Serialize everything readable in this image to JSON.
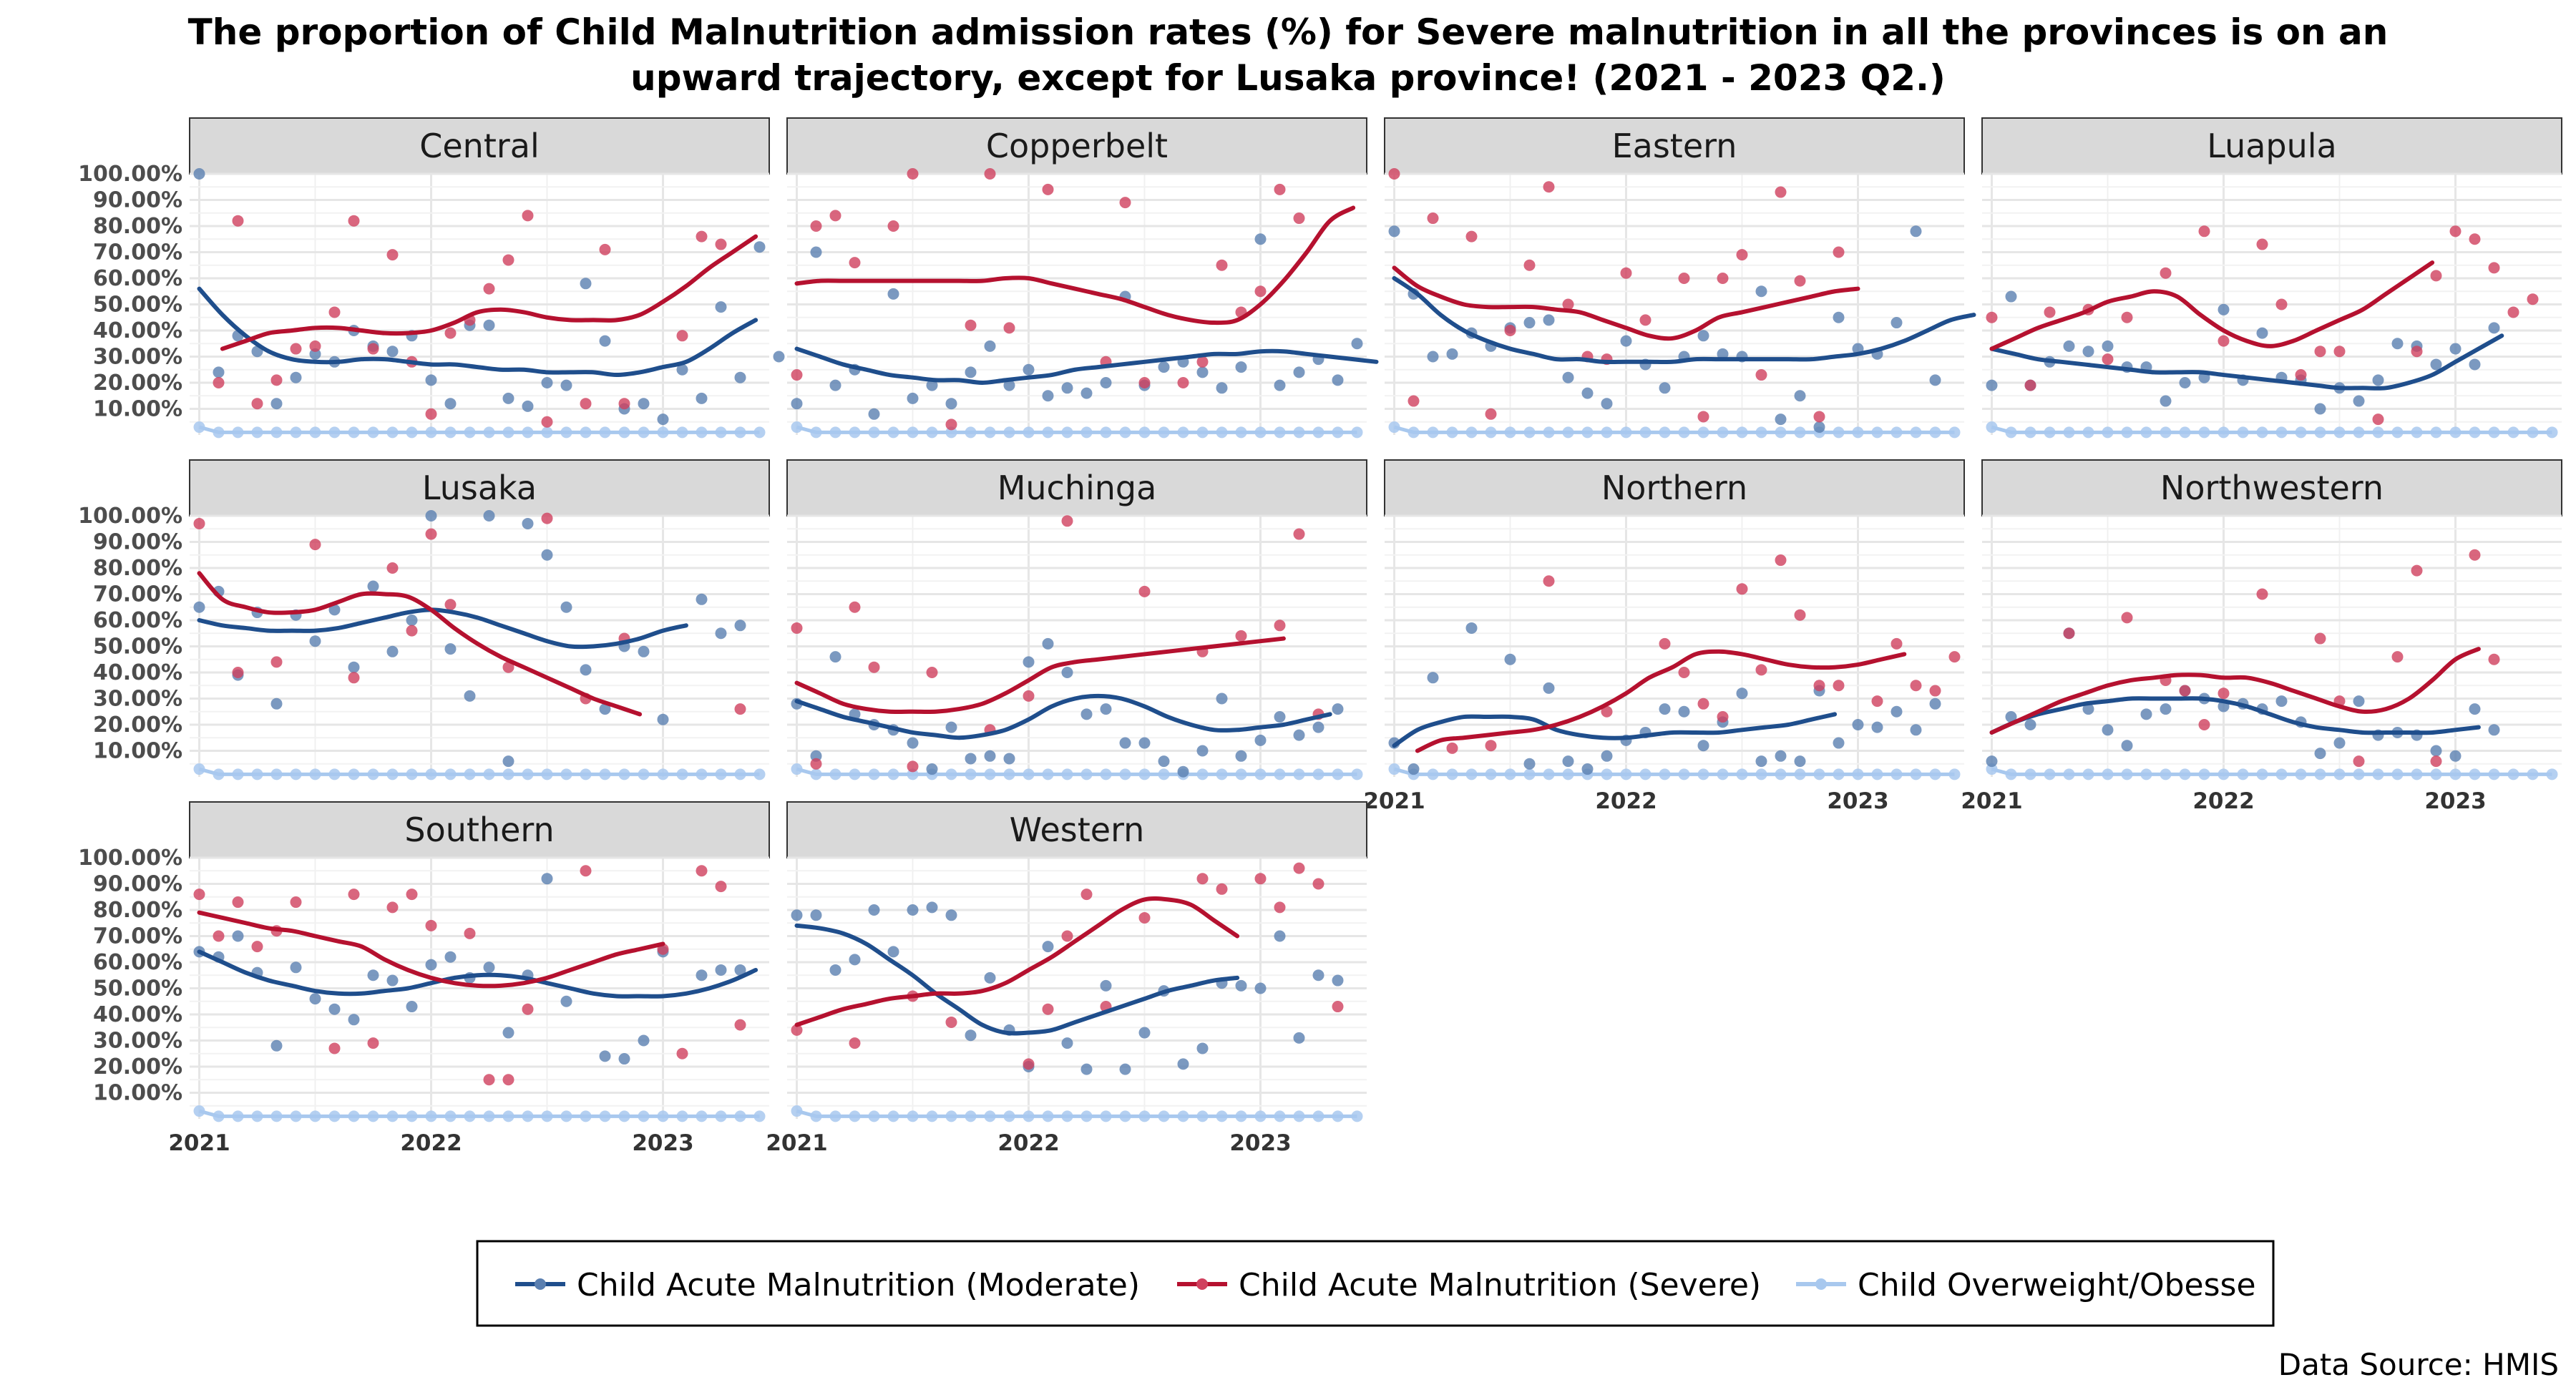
{
  "chart_data": {
    "type": "scatter",
    "title_lines": [
      "The proportion of Child Malnutrition admission rates (%) for Severe malnutrition in all the provinces is on an",
      "upward trajectory, except for Lusaka province! (2021 - 2023 Q2.)"
    ],
    "caption": "Data Source: HMIS",
    "x_ticks": [
      {
        "label": "2021",
        "value": 0
      },
      {
        "label": "2022",
        "value": 12
      },
      {
        "label": "2023",
        "value": 24
      }
    ],
    "x_unit": "months since January 2021",
    "xlim": [
      -0.5,
      29.5
    ],
    "y_ticks": [
      {
        "label": "10.00%",
        "value": 10
      },
      {
        "label": "20.00%",
        "value": 20
      },
      {
        "label": "30.00%",
        "value": 30
      },
      {
        "label": "40.00%",
        "value": 40
      },
      {
        "label": "50.00%",
        "value": 50
      },
      {
        "label": "60.00%",
        "value": 60
      },
      {
        "label": "70.00%",
        "value": 70
      },
      {
        "label": "80.00%",
        "value": 80
      },
      {
        "label": "90.00%",
        "value": 90
      },
      {
        "label": "100.00%",
        "value": 100
      }
    ],
    "ylim": [
      0,
      100
    ],
    "grid": true,
    "legend_position": "bottom",
    "series_meta": [
      {
        "name": "Child Acute Malnutrition (Moderate)",
        "color": "#1f4e8c",
        "point_color": "#5a7fb0"
      },
      {
        "name": "Child Acute Malnutrition (Severe)",
        "color": "#b5112f",
        "point_color": "#d0405e"
      },
      {
        "name": "Child Overweight/Obesse",
        "color": "#a8c8ee",
        "point_color": "#a8c8ee"
      }
    ],
    "panels": [
      {
        "name": "Central",
        "moderate": [
          100,
          24,
          38,
          32,
          12,
          22,
          31,
          28,
          40,
          34,
          32,
          38,
          21,
          12,
          42,
          42,
          14,
          11,
          20,
          19,
          58,
          36,
          10,
          12,
          6,
          25,
          14,
          49,
          22,
          72,
          30
        ],
        "severe": [
          null,
          20,
          82,
          12,
          21,
          33,
          34,
          47,
          82,
          33,
          69,
          28,
          8,
          39,
          44,
          56,
          67,
          84,
          5,
          null,
          12,
          71,
          12,
          null,
          null,
          38,
          76,
          73
        ],
        "moderate_trend": [
          56,
          46,
          38,
          32,
          29,
          28,
          28,
          29,
          29,
          28,
          27,
          27,
          26,
          25,
          25,
          24,
          24,
          24,
          23,
          24,
          26,
          28,
          33,
          39,
          44
        ],
        "severe_trend": [
          null,
          33,
          36,
          39,
          40,
          41,
          41,
          40,
          39,
          39,
          40,
          43,
          47,
          48,
          47,
          45,
          44,
          44,
          44,
          46,
          51,
          57,
          64,
          70,
          76
        ]
      },
      {
        "name": "Copperbelt",
        "moderate": [
          12,
          70,
          19,
          25,
          8,
          54,
          14,
          19,
          12,
          24,
          34,
          19,
          25,
          15,
          18,
          16,
          20,
          53,
          19,
          26,
          28,
          24,
          18,
          26,
          75,
          19,
          24,
          29,
          21,
          35
        ],
        "severe": [
          23,
          80,
          84,
          66,
          null,
          80,
          100,
          null,
          4,
          42,
          100,
          41,
          null,
          94,
          null,
          null,
          28,
          89,
          20,
          null,
          20,
          28,
          65,
          47,
          55,
          94,
          83
        ],
        "moderate_trend": [
          33,
          30,
          27,
          25,
          23,
          22,
          21,
          21,
          20,
          21,
          22,
          23,
          25,
          26,
          27,
          28,
          29,
          30,
          31,
          31,
          32,
          32,
          31,
          30,
          29,
          28
        ],
        "severe_trend": [
          58,
          59,
          59,
          59,
          59,
          59,
          59,
          59,
          59,
          60,
          60,
          58,
          56,
          54,
          52,
          49,
          46,
          44,
          43,
          44,
          50,
          59,
          70,
          82,
          87
        ]
      },
      {
        "name": "Eastern",
        "moderate": [
          78,
          54,
          30,
          31,
          39,
          34,
          41,
          43,
          44,
          22,
          16,
          12,
          36,
          27,
          18,
          30,
          38,
          31,
          30,
          55,
          6,
          15,
          3,
          45,
          33,
          31,
          43,
          78,
          21
        ],
        "severe": [
          100,
          13,
          83,
          null,
          76,
          8,
          40,
          65,
          95,
          50,
          30,
          29,
          62,
          44,
          null,
          60,
          7,
          60,
          69,
          23,
          93,
          59,
          7,
          70
        ],
        "moderate_trend": [
          60,
          54,
          46,
          40,
          36,
          33,
          31,
          29,
          29,
          28,
          28,
          28,
          28,
          29,
          29,
          29,
          29,
          29,
          29,
          30,
          31,
          33,
          36,
          40,
          44,
          46
        ],
        "severe_trend": [
          64,
          57,
          53,
          50,
          49,
          49,
          49,
          48,
          47,
          44,
          41,
          38,
          37,
          40,
          45,
          47,
          49,
          51,
          53,
          55,
          56
        ]
      },
      {
        "name": "Luapula",
        "moderate": [
          19,
          53,
          19,
          28,
          34,
          32,
          34,
          26,
          26,
          13,
          20,
          22,
          48,
          21,
          39,
          22,
          21,
          10,
          18,
          13,
          21,
          35,
          34,
          27,
          33,
          27,
          41
        ],
        "severe": [
          45,
          null,
          19,
          47,
          null,
          48,
          29,
          45,
          null,
          62,
          null,
          78,
          36,
          null,
          73,
          50,
          23,
          32,
          32,
          null,
          6,
          null,
          32,
          61,
          78,
          75,
          64,
          47,
          52
        ],
        "moderate_trend": [
          33,
          31,
          29,
          28,
          27,
          26,
          25,
          24,
          24,
          24,
          23,
          22,
          21,
          20,
          19,
          18,
          18,
          18,
          20,
          23,
          28,
          33,
          38
        ],
        "severe_trend": [
          33,
          37,
          41,
          44,
          47,
          51,
          53,
          55,
          53,
          46,
          40,
          36,
          34,
          36,
          40,
          44,
          48,
          54,
          60,
          66
        ]
      },
      {
        "name": "Lusaka",
        "moderate": [
          65,
          71,
          39,
          63,
          28,
          62,
          52,
          64,
          42,
          73,
          48,
          60,
          100,
          49,
          31,
          100,
          6,
          97,
          85,
          65,
          41,
          26,
          50,
          48,
          22,
          null,
          68,
          55,
          58
        ],
        "severe": [
          97,
          null,
          40,
          null,
          44,
          null,
          89,
          null,
          38,
          null,
          80,
          56,
          93,
          66,
          null,
          null,
          42,
          null,
          99,
          null,
          30,
          null,
          53,
          null,
          null,
          null,
          null,
          null,
          26
        ],
        "moderate_trend": [
          60,
          58,
          57,
          56,
          56,
          56,
          57,
          59,
          61,
          63,
          64,
          63,
          61,
          58,
          55,
          52,
          50,
          50,
          51,
          53,
          56,
          58
        ],
        "severe_trend": [
          78,
          68,
          65,
          63,
          63,
          64,
          67,
          70,
          70,
          69,
          64,
          57,
          51,
          46,
          42,
          38,
          34,
          30,
          27,
          24
        ]
      },
      {
        "name": "Muchinga",
        "moderate": [
          28,
          8,
          46,
          24,
          20,
          18,
          13,
          3,
          19,
          7,
          8,
          7,
          44,
          51,
          40,
          24,
          26,
          13,
          13,
          6,
          2,
          10,
          30,
          8,
          14,
          23,
          16,
          19,
          26
        ],
        "severe": [
          57,
          5,
          null,
          65,
          42,
          null,
          4,
          40,
          null,
          null,
          18,
          null,
          31,
          null,
          98,
          null,
          null,
          null,
          71,
          null,
          null,
          48,
          null,
          54,
          null,
          58,
          93,
          24
        ],
        "moderate_trend": [
          29,
          26,
          23,
          21,
          19,
          17,
          16,
          15,
          16,
          18,
          22,
          27,
          30,
          31,
          30,
          27,
          23,
          20,
          18,
          18,
          19,
          20,
          22,
          24
        ],
        "severe_trend": [
          36,
          32,
          28,
          26,
          25,
          25,
          25,
          26,
          28,
          32,
          37,
          42,
          44,
          45,
          46,
          47,
          48,
          49,
          50,
          51,
          52,
          53
        ]
      },
      {
        "name": "Northern",
        "moderate": [
          13,
          3,
          38,
          null,
          57,
          null,
          45,
          5,
          34,
          6,
          3,
          8,
          14,
          17,
          26,
          25,
          12,
          21,
          32,
          6,
          8,
          6,
          33,
          13,
          20,
          19,
          25,
          18,
          28
        ],
        "severe": [
          null,
          null,
          null,
          11,
          null,
          12,
          null,
          null,
          75,
          null,
          null,
          25,
          null,
          null,
          51,
          40,
          28,
          23,
          72,
          41,
          83,
          62,
          35,
          35,
          null,
          29,
          51,
          35,
          33,
          46
        ],
        "moderate_trend": [
          12,
          18,
          21,
          23,
          23,
          23,
          22,
          18,
          16,
          15,
          15,
          16,
          17,
          17,
          17,
          18,
          19,
          20,
          22,
          24
        ],
        "severe_trend": [
          null,
          10,
          14,
          15,
          16,
          17,
          18,
          20,
          23,
          27,
          32,
          38,
          42,
          47,
          48,
          47,
          45,
          43,
          42,
          42,
          43,
          45,
          47
        ]
      },
      {
        "name": "Northwestern",
        "moderate": [
          6,
          23,
          20,
          null,
          55,
          26,
          18,
          12,
          24,
          26,
          33,
          30,
          27,
          28,
          26,
          29,
          21,
          9,
          13,
          29,
          16,
          17,
          16,
          10,
          8,
          26,
          18
        ],
        "severe": [
          null,
          null,
          null,
          null,
          55,
          null,
          null,
          61,
          null,
          37,
          33,
          20,
          32,
          null,
          70,
          null,
          null,
          53,
          29,
          6,
          null,
          46,
          79,
          6,
          null,
          85,
          45
        ],
        "moderate_trend": [
          17,
          21,
          24,
          26,
          28,
          29,
          30,
          30,
          30,
          30,
          29,
          27,
          24,
          21,
          19,
          18,
          17,
          17,
          17,
          17,
          18,
          19
        ],
        "severe_trend": [
          17,
          21,
          25,
          29,
          32,
          35,
          37,
          38,
          39,
          39,
          38,
          38,
          36,
          33,
          30,
          27,
          25,
          26,
          30,
          37,
          45,
          49
        ]
      },
      {
        "name": "Southern",
        "moderate": [
          64,
          62,
          70,
          56,
          28,
          58,
          46,
          42,
          38,
          55,
          53,
          43,
          59,
          62,
          54,
          58,
          33,
          55,
          92,
          45,
          null,
          24,
          23,
          30,
          64,
          null,
          55,
          57,
          57
        ],
        "severe": [
          86,
          70,
          83,
          66,
          72,
          83,
          null,
          27,
          86,
          29,
          81,
          86,
          74,
          null,
          71,
          15,
          15,
          42,
          null,
          null,
          95,
          null,
          null,
          null,
          65,
          25,
          95,
          89,
          36
        ],
        "moderate_trend": [
          64,
          60,
          56,
          53,
          51,
          49,
          48,
          48,
          49,
          50,
          52,
          54,
          55,
          55,
          54,
          52,
          50,
          48,
          47,
          47,
          47,
          48,
          50,
          53,
          57
        ],
        "severe_trend": [
          79,
          77,
          75,
          73,
          72,
          70,
          68,
          66,
          61,
          57,
          54,
          52,
          51,
          51,
          52,
          54,
          57,
          60,
          63,
          65,
          67
        ]
      },
      {
        "name": "Western",
        "moderate": [
          78,
          78,
          57,
          61,
          80,
          64,
          80,
          81,
          78,
          32,
          54,
          34,
          20,
          66,
          29,
          19,
          51,
          19,
          33,
          49,
          21,
          27,
          52,
          51,
          50,
          70,
          31,
          55,
          53
        ],
        "severe": [
          34,
          null,
          null,
          29,
          null,
          null,
          47,
          null,
          37,
          null,
          null,
          null,
          21,
          42,
          70,
          86,
          43,
          null,
          77,
          null,
          null,
          92,
          88,
          null,
          92,
          81,
          96,
          90,
          43
        ],
        "moderate_trend": [
          74,
          73,
          71,
          67,
          61,
          55,
          48,
          42,
          36,
          33,
          33,
          34,
          37,
          40,
          43,
          46,
          49,
          51,
          53,
          54
        ],
        "severe_trend": [
          36,
          39,
          42,
          44,
          46,
          47,
          48,
          48,
          49,
          52,
          57,
          62,
          68,
          74,
          80,
          84,
          84,
          82,
          76,
          70
        ]
      }
    ],
    "overweight_note": "Child Overweight/Obesse values are near 0% in every province across all months"
  },
  "legend": {
    "items": [
      "Child Acute Malnutrition (Moderate)",
      "Child Acute Malnutrition (Severe)",
      "Child Overweight/Obesse"
    ]
  }
}
